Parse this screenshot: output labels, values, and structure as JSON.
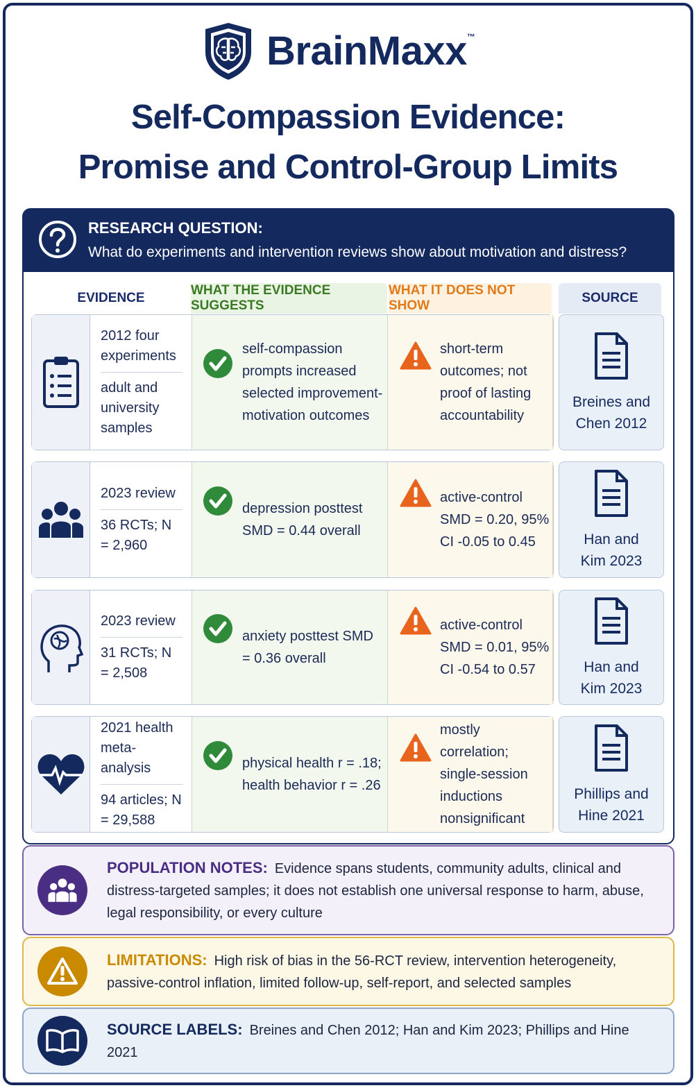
{
  "brand": {
    "name": "BrainMaxx",
    "tm": "™"
  },
  "title": [
    "Self-Compassion Evidence:",
    "Promise and Control-Group Limits"
  ],
  "research_question": {
    "label": "RESEARCH QUESTION:",
    "text": "What do experiments and intervention reviews show about motivation and distress?"
  },
  "table": {
    "headers": [
      "EVIDENCE",
      "WHAT THE EVIDENCE SUGGESTS",
      "WHAT IT DOES NOT SHOW",
      "SOURCE"
    ],
    "rows": [
      {
        "evidence": [
          "2012 four experiments",
          "adult and university samples"
        ],
        "suggests": "self-compassion prompts increased selected improvement-motivation outcomes",
        "not_show": "short-term outcomes; not proof of lasting accountability",
        "source": "Breines and Chen 2012"
      },
      {
        "evidence": [
          "2023 review",
          "36 RCTs; N = 2,960"
        ],
        "suggests": "depression posttest SMD = 0.44 overall",
        "not_show": "active-control SMD = 0.20, 95% CI -0.05 to 0.45",
        "source": "Han and Kim 2023"
      },
      {
        "evidence": [
          "2023 review",
          "31 RCTs; N = 2,508"
        ],
        "suggests": "anxiety posttest SMD = 0.36 overall",
        "not_show": "active-control SMD = 0.01, 95% CI -0.54 to 0.57",
        "source": "Han and Kim 2023"
      },
      {
        "evidence": [
          "2021 health meta-analysis",
          "94 articles; N = 29,588"
        ],
        "suggests": "physical health r = .18; health behavior r = .26",
        "not_show": "mostly correlation; single-session inductions nonsignificant",
        "source": "Phillips and Hine 2021"
      }
    ]
  },
  "notes": [
    {
      "label": "POPULATION NOTES:",
      "text": "Evidence spans students, community adults, clinical and distress-targeted samples; it does not establish one universal response to harm, abuse, legal responsibility, or every culture"
    },
    {
      "label": "LIMITATIONS:",
      "text": "High risk of bias in the 56-RCT review, intervention heterogeneity, passive-control inflation, limited follow-up, self-report, and selected samples"
    },
    {
      "label": "SOURCE LABELS:",
      "text": "Breines and Chen 2012; Han and Kim 2023; Phillips and Hine 2021"
    }
  ]
}
